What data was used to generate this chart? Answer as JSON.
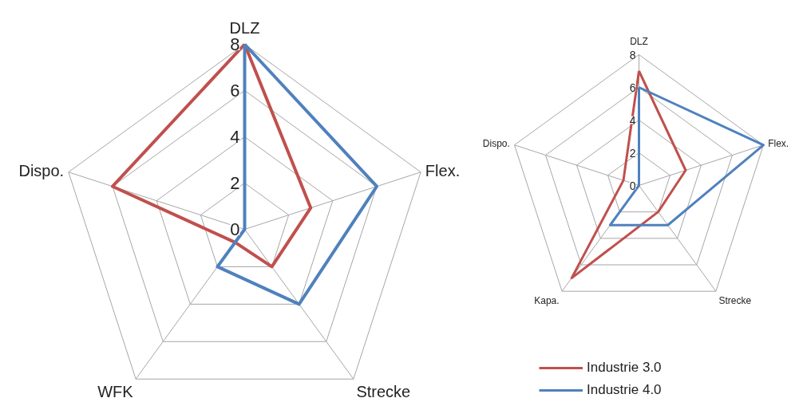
{
  "chart_data": [
    {
      "type": "radar",
      "categories": [
        "DLZ",
        "Flex.",
        "Strecke",
        "WFK",
        "Dispo."
      ],
      "ylim": [
        0,
        8
      ],
      "yticks": [
        0,
        2,
        4,
        6,
        8
      ],
      "grid": true,
      "series": [
        {
          "color": "#c0504d",
          "values": [
            8,
            3,
            2,
            0.7,
            6
          ]
        },
        {
          "color": "#4f81bd",
          "values": [
            8,
            6,
            4,
            2,
            0
          ]
        }
      ]
    },
    {
      "type": "radar",
      "categories": [
        "DLZ",
        "Flex.",
        "Strecke",
        "Kapa.",
        "Dispo."
      ],
      "ylim": [
        0,
        8
      ],
      "yticks": [
        0,
        2,
        4,
        6,
        8
      ],
      "legend": "bottom",
      "grid": true,
      "series": [
        {
          "name": "Industrie 3.0",
          "color": "#c0504d",
          "values": [
            7,
            3,
            2,
            7,
            1
          ]
        },
        {
          "name": "Industrie 4.0",
          "color": "#4f81bd",
          "values": [
            6,
            8,
            3,
            3,
            0
          ]
        }
      ]
    }
  ]
}
